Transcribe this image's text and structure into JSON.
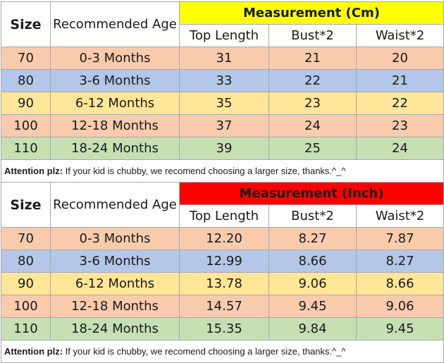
{
  "tables": [
    {
      "header": {
        "size": "Size",
        "age": "Recommended Age",
        "measurement": "Measurement (Cm)",
        "measurement_color": "#ffff00",
        "columns": [
          "Top Length",
          "Bust*2",
          "Waist*2"
        ]
      },
      "rows": [
        {
          "size": "70",
          "age": "0-3 Months",
          "top_length": "31",
          "bust": "21",
          "waist": "20"
        },
        {
          "size": "80",
          "age": "3-6 Months",
          "top_length": "33",
          "bust": "22",
          "waist": "21"
        },
        {
          "size": "90",
          "age": "6-12 Months",
          "top_length": "35",
          "bust": "23",
          "waist": "22"
        },
        {
          "size": "100",
          "age": "12-18 Months",
          "top_length": "37",
          "bust": "24",
          "waist": "23"
        },
        {
          "size": "110",
          "age": "18-24 Months",
          "top_length": "39",
          "bust": "25",
          "waist": "24"
        }
      ],
      "note": {
        "lead": "Attention plz:",
        "text": " If your kid is chubby, we recomend choosing a larger size, thanks.^_^"
      }
    },
    {
      "header": {
        "size": "Size",
        "age": "Recommended Age",
        "measurement": "Measurement (Inch)",
        "measurement_color": "#ff0000",
        "columns": [
          "Top Length",
          "Bust*2",
          "Waist*2"
        ]
      },
      "rows": [
        {
          "size": "70",
          "age": "0-3 Months",
          "top_length": "12.20",
          "bust": "8.27",
          "waist": "7.87"
        },
        {
          "size": "80",
          "age": "3-6 Months",
          "top_length": "12.99",
          "bust": "8.66",
          "waist": "8.27"
        },
        {
          "size": "90",
          "age": "6-12 Months",
          "top_length": "13.78",
          "bust": "9.06",
          "waist": "8.66"
        },
        {
          "size": "100",
          "age": "12-18 Months",
          "top_length": "14.57",
          "bust": "9.45",
          "waist": "9.06"
        },
        {
          "size": "110",
          "age": "18-24 Months",
          "top_length": "15.35",
          "bust": "9.84",
          "waist": "9.45"
        }
      ],
      "note": {
        "lead": "Attention plz:",
        "text": " If your kid is chubby, we recomend choosing a larger size, thanks.^_^"
      }
    }
  ],
  "row_colors": [
    "#f9cbad",
    "#b4c7e8",
    "#ffe699",
    "#f9cbad",
    "#c6e0b4"
  ]
}
